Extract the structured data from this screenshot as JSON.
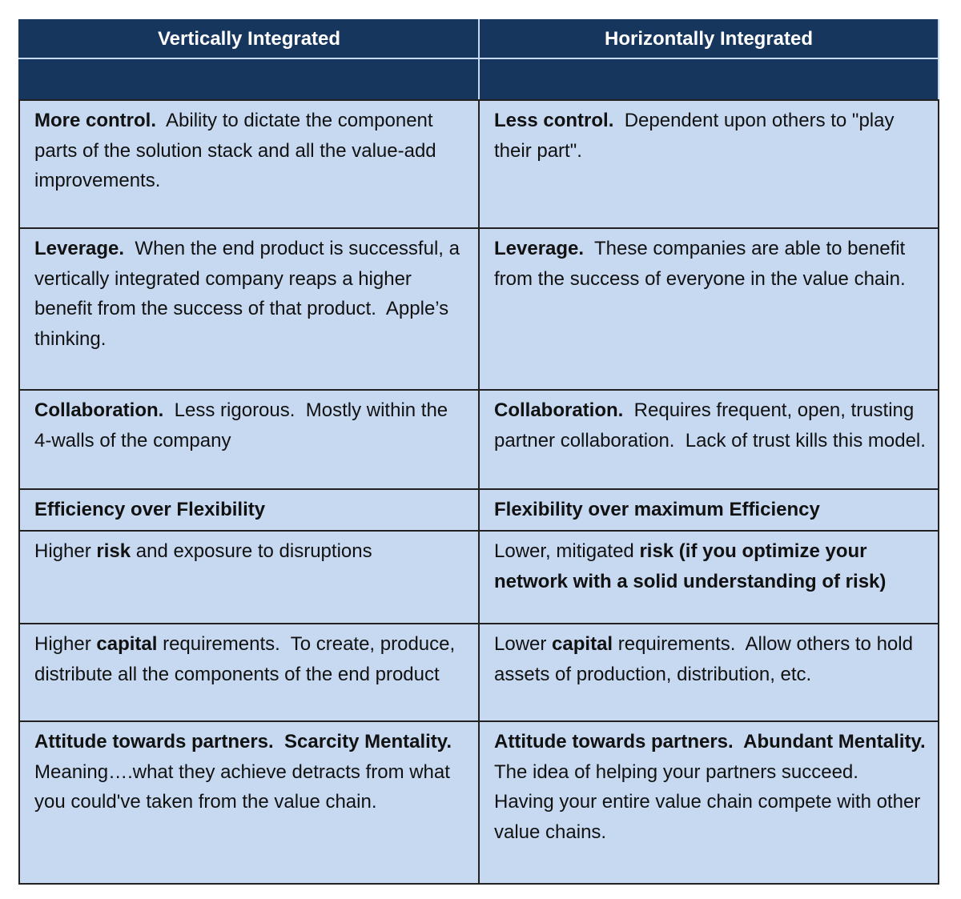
{
  "table": {
    "headers": [
      "Vertically Integrated",
      "Horizontally Integrated"
    ],
    "rows": [
      [
        [
          {
            "text": "More control.",
            "bold": true
          },
          {
            "text": "  Ability to dictate the component parts of the solution stack and all the value-add improvements.",
            "bold": false
          }
        ],
        [
          {
            "text": "Less control.",
            "bold": true
          },
          {
            "text": "  Dependent upon others to \"play their part\".",
            "bold": false
          }
        ]
      ],
      [
        [
          {
            "text": "Leverage.",
            "bold": true
          },
          {
            "text": "  When the end product is successful, a vertically integrated company reaps a higher benefit from the success of that product.  Apple’s thinking.",
            "bold": false
          }
        ],
        [
          {
            "text": "Leverage.",
            "bold": true
          },
          {
            "text": "  These companies are able to benefit from the success of everyone in the value chain.",
            "bold": false
          }
        ]
      ],
      [
        [
          {
            "text": "Collaboration.",
            "bold": true
          },
          {
            "text": "  Less rigorous.  Mostly within the 4-walls of the company",
            "bold": false
          }
        ],
        [
          {
            "text": "Collaboration.",
            "bold": true
          },
          {
            "text": "  Requires frequent, open, trusting partner collaboration.  Lack of trust kills this model.",
            "bold": false
          }
        ]
      ],
      [
        [
          {
            "text": "Efficiency over Flexibility",
            "bold": true
          }
        ],
        [
          {
            "text": "Flexibility over maximum Efficiency",
            "bold": true
          }
        ]
      ],
      [
        [
          {
            "text": "Higher ",
            "bold": false
          },
          {
            "text": "risk",
            "bold": true
          },
          {
            "text": " and exposure to disruptions",
            "bold": false
          }
        ],
        [
          {
            "text": "Lower, mitigated ",
            "bold": false
          },
          {
            "text": "risk (if you optimize your network with a solid understanding of risk)",
            "bold": true
          }
        ]
      ],
      [
        [
          {
            "text": "Higher ",
            "bold": false
          },
          {
            "text": "capital",
            "bold": true
          },
          {
            "text": " requirements.  To create, produce, distribute all the components of the end product",
            "bold": false
          }
        ],
        [
          {
            "text": "Lower ",
            "bold": false
          },
          {
            "text": "capital",
            "bold": true
          },
          {
            "text": " requirements.  Allow others to hold assets of production, distribution, etc.",
            "bold": false
          }
        ]
      ],
      [
        [
          {
            "text": "Attitude towards partners.  Scarcity Mentality.",
            "bold": true
          },
          {
            "text": "  Meaning….what they achieve detracts from what you could've taken from the value chain.",
            "bold": false
          }
        ],
        [
          {
            "text": "Attitude towards partners.  Abundant Mentality.",
            "bold": true
          },
          {
            "text": "  The idea of helping your partners succeed.  Having your entire value chain compete with other value chains.",
            "bold": false
          }
        ]
      ]
    ]
  }
}
